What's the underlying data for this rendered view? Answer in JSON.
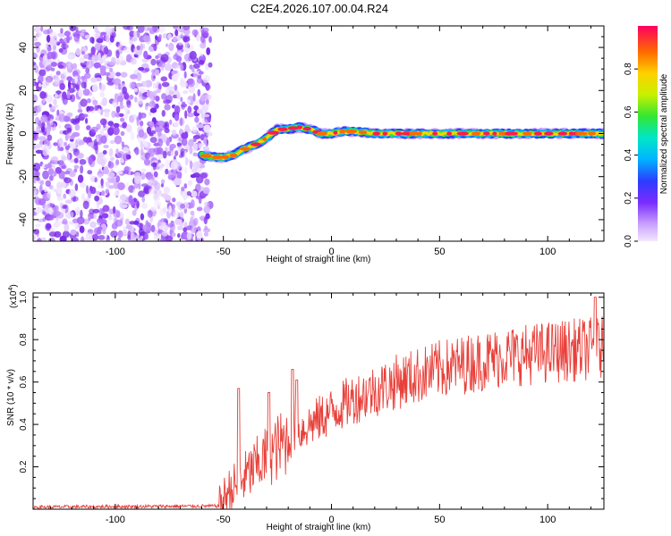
{
  "title": "C2E4.2026.107.00.04.R24",
  "chart_data": [
    {
      "type": "heatmap",
      "name": "spectrogram",
      "xlabel": "Height of straight line (km)",
      "ylabel": "Frequency (Hz)",
      "xlim": [
        -138,
        126
      ],
      "ylim": [
        -50,
        50
      ],
      "xticks": [
        -100,
        -50,
        0,
        50,
        100
      ],
      "yticks": [
        -40,
        -20,
        0,
        20,
        40
      ],
      "noise_region_x": [
        -138,
        -56
      ],
      "ridge": {
        "x": [
          -60,
          -55,
          -50,
          -45,
          -40,
          -35,
          -30,
          -25,
          -20,
          -15,
          -10,
          -5,
          0,
          5,
          10,
          20,
          40,
          60,
          80,
          100,
          126
        ],
        "freq": [
          -10,
          -11,
          -11,
          -10,
          -7,
          -5,
          -2,
          2,
          2,
          3,
          2,
          0,
          0,
          1,
          1,
          0,
          0,
          0,
          0,
          0,
          0
        ]
      },
      "colorbar": {
        "label": "Normalized spectral amplitude",
        "range": [
          0,
          1
        ],
        "ticks": [
          "0.0",
          "0.2",
          "0.4",
          "0.6",
          "0.8"
        ]
      }
    },
    {
      "type": "line",
      "name": "snr",
      "xlabel": "Height of straight line (km)",
      "ylabel": "SNR (10 * v/v)",
      "multiplier": "(x10",
      "multiplier_exp": "4",
      "xlim": [
        -138,
        126
      ],
      "ylim": [
        0,
        1.02
      ],
      "xticks": [
        -100,
        -50,
        0,
        50,
        100
      ],
      "yticks": [
        0.2,
        0.4,
        0.6,
        0.8,
        1.0
      ],
      "ytick_labels": [
        "0.2",
        "0.4",
        "0.6",
        "0.8",
        "1.0"
      ],
      "color": "#e8403a",
      "trend": {
        "x": [
          -138,
          -52,
          -48,
          -40,
          -30,
          -20,
          -10,
          0,
          10,
          20,
          30,
          40,
          50,
          60,
          70,
          80,
          90,
          100,
          110,
          126
        ],
        "y": [
          0.01,
          0.015,
          0.08,
          0.15,
          0.25,
          0.33,
          0.4,
          0.46,
          0.52,
          0.56,
          0.6,
          0.63,
          0.66,
          0.68,
          0.7,
          0.72,
          0.73,
          0.74,
          0.75,
          0.76
        ]
      },
      "peaks": [
        {
          "x": -43,
          "y": 0.57
        },
        {
          "x": -29,
          "y": 0.55
        },
        {
          "x": -18,
          "y": 0.66
        },
        {
          "x": -16,
          "y": 0.61
        },
        {
          "x": 122,
          "y": 1.0
        }
      ]
    }
  ]
}
